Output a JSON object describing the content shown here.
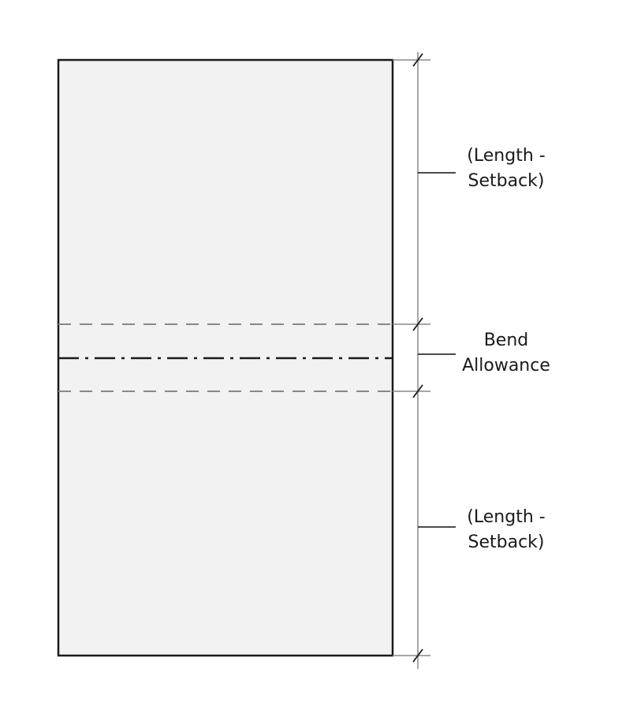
{
  "labels": {
    "top": {
      "line1": "(Length -",
      "line2": "Setback)"
    },
    "middle": {
      "line1": "Bend",
      "line2": "Allowance"
    },
    "bottom": {
      "line1": "(Length -",
      "line2": "Setback)"
    }
  },
  "colors": {
    "sheet_fill": "#f2f2f2",
    "sheet_stroke": "#1a1a1a",
    "bend_line": "#888888",
    "center_line": "#1a1a1a",
    "dimension_line": "#888888",
    "leader_line": "#333333",
    "text": "#1a1a1a"
  }
}
